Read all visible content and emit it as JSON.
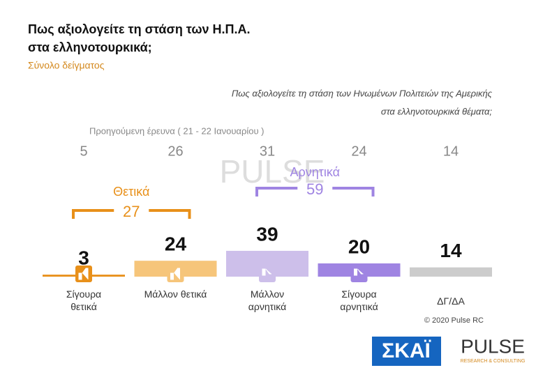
{
  "chart_data": {
    "type": "bar",
    "title": [
      "Πως αξιολογείτε τη στάση των Η.Π.Α.",
      "στα ελληνοτουρκικά;"
    ],
    "subtitle": "Σύνολο δείγματος",
    "question": [
      "Πως αξιολογείτε τη στάση των Ηνωμένων Πολιτειών της Αμερικής",
      "στα ελληνοτουρκικά θέματα;"
    ],
    "categories": [
      "Σίγουρα θετικά",
      "Μάλλον θετικά",
      "Μάλλον αρνητικά",
      "Σίγουρα αρνητικά",
      "ΔΓ/ΔΑ"
    ],
    "values": [
      3,
      24,
      39,
      20,
      14
    ],
    "colors": [
      "#e8901a",
      "#f6c57a",
      "#cdbfea",
      "#9f84e2",
      "#cccccc"
    ],
    "previous": {
      "label": "Προηγούμενη έρευνα   ( 21 - 22 Ιανουαρίου )",
      "values": [
        5,
        26,
        31,
        24,
        14
      ]
    },
    "groups": [
      {
        "name": "Θετικά",
        "value": 27,
        "color": "#e8901a"
      },
      {
        "name": "Αρνητικά",
        "value": 59,
        "color": "#9f84e2"
      }
    ],
    "copyright": "© 2020 Pulse RC",
    "logos": {
      "skai": "ΣΚΑΪ",
      "pulse": "PULSE",
      "pulse_tag": "RESEARCH & CONSULTING"
    }
  }
}
